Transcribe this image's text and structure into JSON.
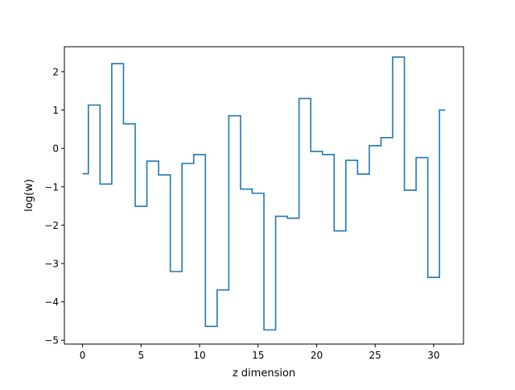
{
  "chart_data": {
    "type": "line",
    "drawstyle": "steps-mid",
    "title": "",
    "xlabel": "z dimension",
    "ylabel": "log(w)",
    "xlim": [
      -1.55,
      32.55
    ],
    "ylim": [
      -5.1,
      2.65
    ],
    "xticks": [
      0,
      5,
      10,
      15,
      20,
      25,
      30
    ],
    "yticks": [
      -5,
      -4,
      -3,
      -2,
      -1,
      0,
      1,
      2
    ],
    "grid": false,
    "line_color": "#1f77b4",
    "x": [
      0,
      1,
      2,
      3,
      4,
      5,
      6,
      7,
      8,
      9,
      10,
      11,
      12,
      13,
      14,
      15,
      16,
      17,
      18,
      19,
      20,
      21,
      22,
      23,
      24,
      25,
      26,
      27,
      28,
      29,
      30,
      31
    ],
    "series": [
      {
        "values": [
          -0.66,
          1.13,
          -0.93,
          2.21,
          0.64,
          -1.51,
          -0.33,
          -0.69,
          -3.21,
          -0.39,
          -0.16,
          -4.64,
          -3.69,
          0.85,
          -1.06,
          -1.17,
          -4.73,
          -1.77,
          -1.82,
          1.3,
          -0.08,
          -0.16,
          -2.15,
          -0.31,
          -0.67,
          0.07,
          0.28,
          2.38,
          -1.09,
          -0.24,
          -3.36,
          1.0
        ]
      }
    ]
  }
}
